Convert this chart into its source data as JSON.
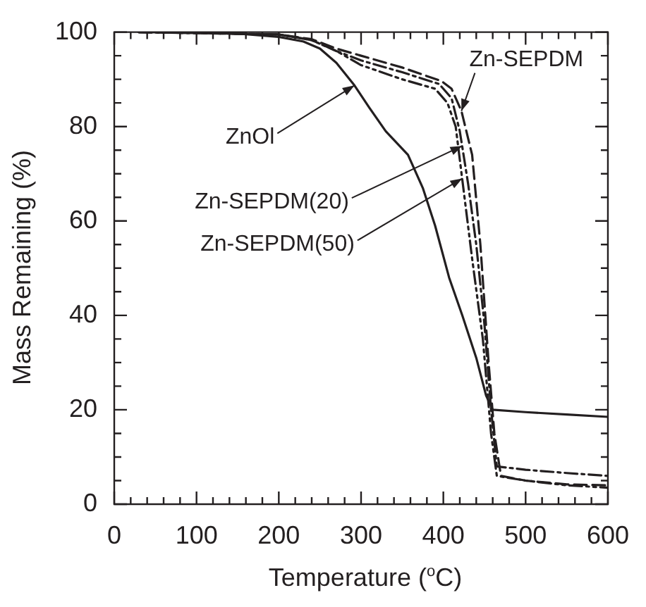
{
  "chart_data": {
    "type": "line",
    "xlabel": "Temperature ($^{o}$C)",
    "ylabel": "Mass Remaining (%)",
    "xlim": [
      0,
      600
    ],
    "ylim": [
      0,
      100
    ],
    "xticks": [
      0,
      {
        "value": 20,
        "label": null
      },
      {
        "value": 40,
        "label": null
      },
      {
        "value": 60,
        "label": null
      },
      {
        "value": 80,
        "label": null
      },
      100,
      {
        "value": 120,
        "label": null
      },
      {
        "value": 140,
        "label": null
      },
      {
        "value": 160,
        "label": null
      },
      {
        "value": 180,
        "label": null
      },
      200,
      {
        "value": 220,
        "label": null
      },
      {
        "value": 240,
        "label": null
      },
      {
        "value": 260,
        "label": null
      },
      {
        "value": 280,
        "label": null
      },
      300,
      {
        "value": 320,
        "label": null
      },
      {
        "value": 340,
        "label": null
      },
      {
        "value": 360,
        "label": null
      },
      {
        "value": 380,
        "label": null
      },
      400,
      {
        "value": 420,
        "label": null
      },
      {
        "value": 440,
        "label": null
      },
      {
        "value": 460,
        "label": null
      },
      {
        "value": 480,
        "label": null
      },
      500,
      {
        "value": 520,
        "label": null
      },
      {
        "value": 540,
        "label": null
      },
      {
        "value": 560,
        "label": null
      },
      {
        "value": 580,
        "label": null
      },
      600
    ],
    "yticks": [
      0,
      {
        "value": 5,
        "label": null
      },
      {
        "value": 10,
        "label": null
      },
      {
        "value": 15,
        "label": null
      },
      20,
      {
        "value": 25,
        "label": null
      },
      {
        "value": 30,
        "label": null
      },
      {
        "value": 35,
        "label": null
      },
      40,
      {
        "value": 45,
        "label": null
      },
      {
        "value": 50,
        "label": null
      },
      {
        "value": 55,
        "label": null
      },
      60,
      {
        "value": 65,
        "label": null
      },
      {
        "value": 70,
        "label": null
      },
      {
        "value": 75,
        "label": null
      },
      80,
      {
        "value": 85,
        "label": null
      },
      {
        "value": 90,
        "label": null
      },
      {
        "value": 95,
        "label": null
      },
      100
    ],
    "grid": false,
    "legend": false,
    "marker": "none",
    "series": [
      {
        "color": "#231f20",
        "line_style": "solid",
        "x": [
          30,
          100,
          150,
          200,
          230,
          250,
          270,
          292,
          310,
          330,
          357,
          375,
          390,
          407,
          423,
          440,
          452,
          460,
          500,
          550,
          600
        ],
        "values": [
          100,
          99.9,
          99.7,
          99,
          98,
          96.5,
          93.5,
          88.7,
          84,
          79,
          74,
          67,
          59,
          48,
          40,
          31,
          23,
          20,
          19.5,
          19,
          18.5
        ]
      },
      {
        "color": "#231f20",
        "line_style": "dashed",
        "x": [
          30,
          200,
          240,
          270,
          300,
          350,
          398,
          410,
          422,
          435,
          445,
          455,
          462,
          470,
          500,
          550,
          600
        ],
        "values": [
          100,
          99.5,
          98.5,
          96.5,
          95,
          92.5,
          89.6,
          88,
          83.3,
          74,
          55,
          30,
          15,
          6,
          5,
          4.2,
          4
        ]
      },
      {
        "color": "#231f20",
        "line_style": "dashdot",
        "x": [
          30,
          200,
          240,
          270,
          300,
          350,
          395,
          410,
          420,
          430,
          440,
          450,
          458,
          465,
          500,
          550,
          600
        ],
        "values": [
          100,
          99.5,
          98.3,
          96,
          94,
          91.5,
          89,
          86,
          79,
          68,
          55,
          38,
          20,
          8,
          7.3,
          6.6,
          6
        ]
      },
      {
        "color": "#231f20",
        "line_style": "dashdotdot",
        "x": [
          30,
          200,
          240,
          270,
          300,
          350,
          390,
          405,
          415,
          425,
          435,
          448,
          458,
          465,
          500,
          550,
          600
        ],
        "values": [
          100,
          99.5,
          98.3,
          96,
          93,
          90,
          88,
          85,
          80,
          66,
          52,
          35,
          15,
          6,
          5,
          4,
          3.5
        ]
      }
    ],
    "annotations": [
      {
        "text": "ZnOl",
        "x": 292,
        "y": 88.7
      },
      {
        "text": "Zn-SEPDM",
        "x": 422,
        "y": 83.3
      },
      {
        "text": "Zn-SEPDM(20)",
        "x": 423,
        "y": 75.9
      },
      {
        "text": "Zn-SEPDM(50)",
        "x": 423,
        "y": 69
      }
    ]
  }
}
